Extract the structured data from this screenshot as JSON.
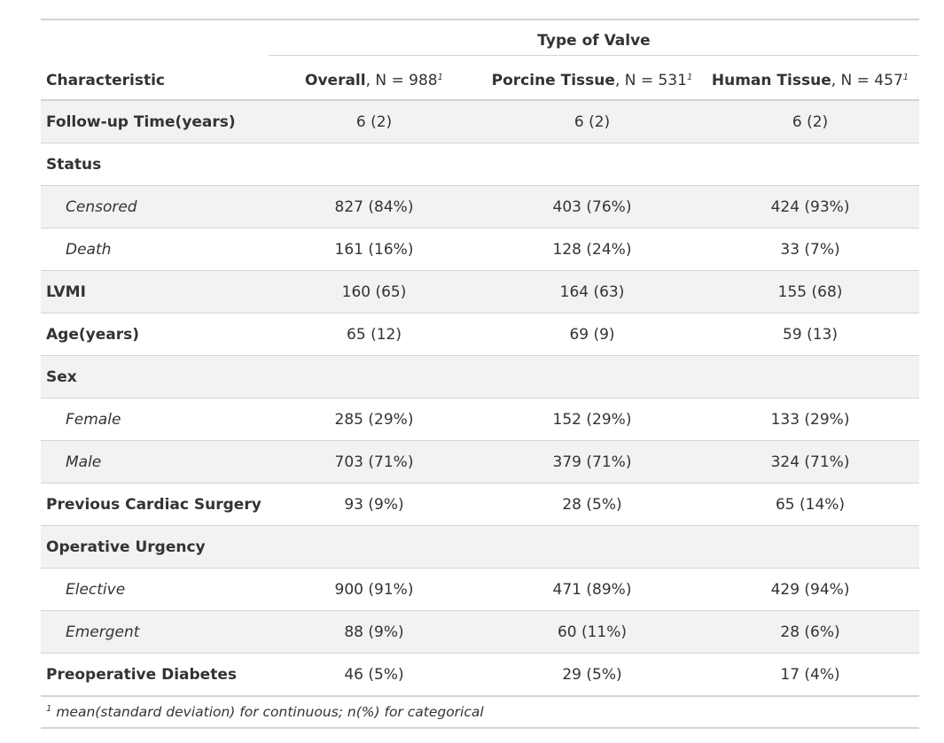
{
  "header": {
    "spanner": "Type of Valve",
    "characteristic": "Characteristic",
    "columns": [
      {
        "name": "Overall",
        "n": ", N = 988",
        "mark": "1"
      },
      {
        "name": "Porcine Tissue",
        "n": ", N = 531",
        "mark": "1"
      },
      {
        "name": "Human Tissue",
        "n": ", N = 457",
        "mark": "1"
      }
    ]
  },
  "rows": [
    {
      "label": "Follow-up Time(years)",
      "level": false,
      "v": [
        "6 (2)",
        "6 (2)",
        "6 (2)"
      ]
    },
    {
      "label": "Status",
      "level": false,
      "v": [
        "",
        "",
        ""
      ]
    },
    {
      "label": "Censored",
      "level": true,
      "v": [
        "827 (84%)",
        "403 (76%)",
        "424 (93%)"
      ]
    },
    {
      "label": "Death",
      "level": true,
      "v": [
        "161 (16%)",
        "128 (24%)",
        "33 (7%)"
      ]
    },
    {
      "label": "LVMI",
      "level": false,
      "v": [
        "160 (65)",
        "164 (63)",
        "155 (68)"
      ]
    },
    {
      "label": "Age(years)",
      "level": false,
      "v": [
        "65 (12)",
        "69 (9)",
        "59 (13)"
      ]
    },
    {
      "label": "Sex",
      "level": false,
      "v": [
        "",
        "",
        ""
      ]
    },
    {
      "label": "Female",
      "level": true,
      "v": [
        "285 (29%)",
        "152 (29%)",
        "133 (29%)"
      ]
    },
    {
      "label": "Male",
      "level": true,
      "v": [
        "703 (71%)",
        "379 (71%)",
        "324 (71%)"
      ]
    },
    {
      "label": "Previous Cardiac Surgery",
      "level": false,
      "v": [
        "93 (9%)",
        "28 (5%)",
        "65 (14%)"
      ]
    },
    {
      "label": "Operative Urgency",
      "level": false,
      "v": [
        "",
        "",
        ""
      ]
    },
    {
      "label": "Elective",
      "level": true,
      "v": [
        "900 (91%)",
        "471 (89%)",
        "429 (94%)"
      ]
    },
    {
      "label": "Emergent",
      "level": true,
      "v": [
        "88 (9%)",
        "60 (11%)",
        "28 (6%)"
      ]
    },
    {
      "label": "Preoperative Diabetes",
      "level": false,
      "v": [
        "46 (5%)",
        "29 (5%)",
        "17 (4%)"
      ]
    }
  ],
  "footnote": {
    "mark": "1",
    "text": "mean(standard deviation) for continuous; n(%) for categorical"
  },
  "colors": {
    "stripe": "#f2f2f2",
    "rule": "#d3d3d3",
    "text": "#333333"
  }
}
